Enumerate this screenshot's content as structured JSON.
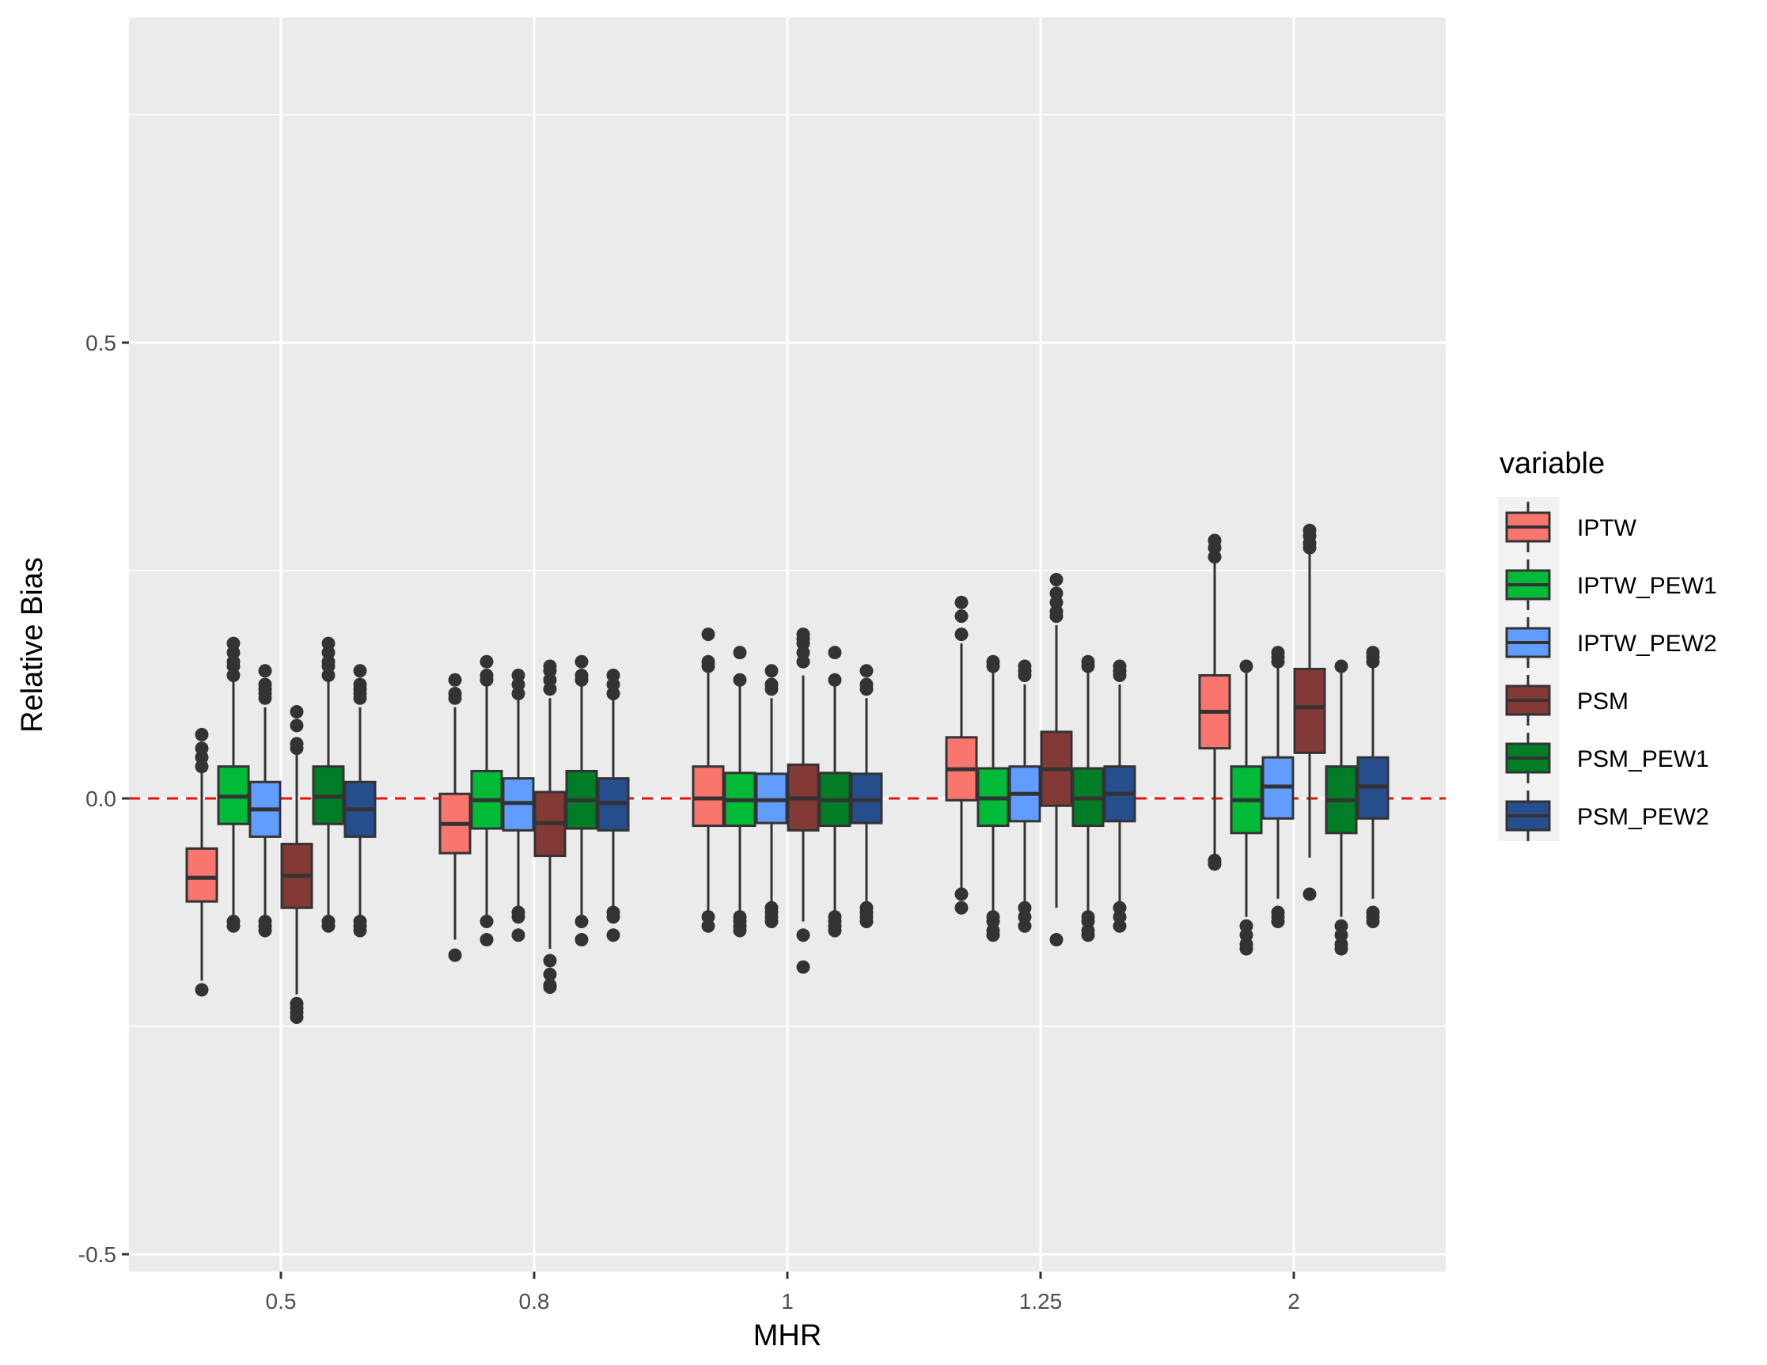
{
  "chart_data": {
    "type": "boxplot",
    "title": "",
    "xlabel": "MHR",
    "ylabel": "Relative Bias",
    "categories": [
      "0.5",
      "0.8",
      "1",
      "1.25",
      "2"
    ],
    "ylim": [
      -0.52,
      0.85
    ],
    "yticks": [
      -0.5,
      0.0,
      0.5
    ],
    "ytick_labels": [
      "-0.5",
      "0.0",
      "0.5"
    ],
    "reference_line": {
      "y": 0.0,
      "color": "#e3140f",
      "style": "dashed"
    },
    "grid": true,
    "legend": {
      "title": "variable",
      "position": "right"
    },
    "series": [
      {
        "name": "IPTW",
        "color": "#f8766d",
        "boxes": [
          {
            "q1": -0.113,
            "median": -0.087,
            "q3": -0.055,
            "whisker_low": -0.2,
            "whisker_high": 0.033,
            "outliers": [
              0.035,
              0.045,
              0.055,
              0.07,
              -0.21
            ]
          },
          {
            "q1": -0.06,
            "median": -0.028,
            "q3": 0.005,
            "whisker_low": -0.155,
            "whisker_high": 0.1,
            "outliers": [
              0.11,
              0.115,
              0.13,
              -0.172
            ]
          },
          {
            "q1": -0.03,
            "median": 0.0,
            "q3": 0.035,
            "whisker_low": -0.125,
            "whisker_high": 0.14,
            "outliers": [
              0.145,
              0.15,
              0.18,
              -0.13,
              -0.14
            ]
          },
          {
            "q1": -0.002,
            "median": 0.032,
            "q3": 0.067,
            "whisker_low": -0.1,
            "whisker_high": 0.17,
            "outliers": [
              0.18,
              0.2,
              0.215,
              -0.105,
              -0.12
            ]
          },
          {
            "q1": 0.055,
            "median": 0.095,
            "q3": 0.135,
            "whisker_low": -0.065,
            "whisker_high": 0.26,
            "outliers": [
              0.265,
              0.275,
              0.283,
              -0.068,
              -0.072
            ]
          }
        ]
      },
      {
        "name": "IPTW_PEW1",
        "color": "#00ba38",
        "boxes": [
          {
            "q1": -0.028,
            "median": 0.002,
            "q3": 0.035,
            "whisker_low": -0.13,
            "whisker_high": 0.13,
            "outliers": [
              0.135,
              0.145,
              0.15,
              0.16,
              0.17,
              -0.135,
              -0.14
            ]
          },
          {
            "q1": -0.033,
            "median": -0.002,
            "q3": 0.03,
            "whisker_low": -0.13,
            "whisker_high": 0.125,
            "outliers": [
              0.13,
              0.135,
              0.15,
              -0.135,
              -0.155
            ]
          },
          {
            "q1": -0.03,
            "median": -0.002,
            "q3": 0.028,
            "whisker_low": -0.125,
            "whisker_high": 0.125,
            "outliers": [
              0.13,
              0.16,
              -0.13,
              -0.135,
              -0.14,
              -0.145
            ]
          },
          {
            "q1": -0.03,
            "median": 0.0,
            "q3": 0.033,
            "whisker_low": -0.125,
            "whisker_high": 0.14,
            "outliers": [
              0.145,
              0.15,
              -0.13,
              -0.135,
              -0.145,
              -0.15
            ]
          },
          {
            "q1": -0.038,
            "median": -0.002,
            "q3": 0.035,
            "whisker_low": -0.13,
            "whisker_high": 0.14,
            "outliers": [
              0.145,
              -0.14,
              -0.15,
              -0.16,
              -0.165
            ]
          }
        ]
      },
      {
        "name": "IPTW_PEW2",
        "color": "#619cff",
        "boxes": [
          {
            "q1": -0.042,
            "median": -0.012,
            "q3": 0.018,
            "whisker_low": -0.13,
            "whisker_high": 0.1,
            "outliers": [
              0.11,
              0.115,
              0.12,
              0.125,
              0.14,
              -0.135,
              -0.14,
              -0.145
            ]
          },
          {
            "q1": -0.035,
            "median": -0.005,
            "q3": 0.022,
            "whisker_low": -0.12,
            "whisker_high": 0.11,
            "outliers": [
              0.115,
              0.125,
              0.135,
              -0.125,
              -0.13,
              -0.15
            ]
          },
          {
            "q1": -0.027,
            "median": -0.002,
            "q3": 0.027,
            "whisker_low": -0.12,
            "whisker_high": 0.11,
            "outliers": [
              0.12,
              0.125,
              0.14,
              -0.12,
              -0.125,
              -0.13,
              -0.135
            ]
          },
          {
            "q1": -0.025,
            "median": 0.005,
            "q3": 0.035,
            "whisker_low": -0.12,
            "whisker_high": 0.125,
            "outliers": [
              0.135,
              0.14,
              0.145,
              -0.12,
              -0.13,
              -0.14
            ]
          },
          {
            "q1": -0.022,
            "median": 0.013,
            "q3": 0.045,
            "whisker_low": -0.11,
            "whisker_high": 0.145,
            "outliers": [
              0.15,
              0.155,
              0.16,
              -0.125,
              -0.13,
              -0.135
            ]
          }
        ]
      },
      {
        "name": "PSM",
        "color": "#833a37",
        "boxes": [
          {
            "q1": -0.12,
            "median": -0.085,
            "q3": -0.05,
            "whisker_low": -0.215,
            "whisker_high": 0.05,
            "outliers": [
              0.055,
              0.06,
              0.08,
              0.095,
              -0.225,
              -0.23,
              -0.235,
              -0.24
            ]
          },
          {
            "q1": -0.063,
            "median": -0.027,
            "q3": 0.007,
            "whisker_low": -0.165,
            "whisker_high": 0.11,
            "outliers": [
              0.12,
              0.13,
              0.14,
              0.145,
              -0.178,
              -0.193,
              -0.205,
              -0.207
            ]
          },
          {
            "q1": -0.035,
            "median": 0.0,
            "q3": 0.037,
            "whisker_low": -0.135,
            "whisker_high": 0.135,
            "outliers": [
              0.15,
              0.16,
              0.17,
              0.175,
              0.18,
              -0.15,
              -0.185
            ]
          },
          {
            "q1": -0.008,
            "median": 0.032,
            "q3": 0.073,
            "whisker_low": -0.12,
            "whisker_high": 0.19,
            "outliers": [
              0.2,
              0.205,
              0.215,
              0.225,
              0.24,
              -0.155
            ]
          },
          {
            "q1": 0.05,
            "median": 0.1,
            "q3": 0.142,
            "whisker_low": -0.065,
            "whisker_high": 0.27,
            "outliers": [
              0.275,
              0.28,
              0.288,
              0.294,
              -0.105
            ]
          }
        ]
      },
      {
        "name": "PSM_PEW1",
        "color": "#007d25",
        "boxes": [
          {
            "q1": -0.028,
            "median": 0.002,
            "q3": 0.035,
            "whisker_low": -0.13,
            "whisker_high": 0.13,
            "outliers": [
              0.135,
              0.145,
              0.15,
              0.16,
              0.17,
              -0.135,
              -0.14
            ]
          },
          {
            "q1": -0.033,
            "median": -0.002,
            "q3": 0.03,
            "whisker_low": -0.13,
            "whisker_high": 0.125,
            "outliers": [
              0.13,
              0.135,
              0.15,
              -0.135,
              -0.155
            ]
          },
          {
            "q1": -0.03,
            "median": -0.002,
            "q3": 0.028,
            "whisker_low": -0.125,
            "whisker_high": 0.125,
            "outliers": [
              0.13,
              0.16,
              -0.13,
              -0.135,
              -0.14,
              -0.145
            ]
          },
          {
            "q1": -0.03,
            "median": 0.0,
            "q3": 0.033,
            "whisker_low": -0.125,
            "whisker_high": 0.14,
            "outliers": [
              0.145,
              0.15,
              -0.13,
              -0.135,
              -0.145,
              -0.15
            ]
          },
          {
            "q1": -0.038,
            "median": -0.002,
            "q3": 0.035,
            "whisker_low": -0.13,
            "whisker_high": 0.14,
            "outliers": [
              0.145,
              -0.14,
              -0.15,
              -0.16,
              -0.165
            ]
          }
        ]
      },
      {
        "name": "PSM_PEW2",
        "color": "#264d8c",
        "boxes": [
          {
            "q1": -0.042,
            "median": -0.012,
            "q3": 0.018,
            "whisker_low": -0.13,
            "whisker_high": 0.1,
            "outliers": [
              0.11,
              0.115,
              0.12,
              0.125,
              0.14,
              -0.135,
              -0.14,
              -0.145
            ]
          },
          {
            "q1": -0.035,
            "median": -0.005,
            "q3": 0.022,
            "whisker_low": -0.12,
            "whisker_high": 0.11,
            "outliers": [
              0.115,
              0.125,
              0.135,
              -0.125,
              -0.13,
              -0.15
            ]
          },
          {
            "q1": -0.027,
            "median": -0.002,
            "q3": 0.027,
            "whisker_low": -0.12,
            "whisker_high": 0.11,
            "outliers": [
              0.12,
              0.125,
              0.14,
              -0.12,
              -0.125,
              -0.13,
              -0.135
            ]
          },
          {
            "q1": -0.025,
            "median": 0.005,
            "q3": 0.035,
            "whisker_low": -0.12,
            "whisker_high": 0.125,
            "outliers": [
              0.135,
              0.14,
              0.145,
              -0.12,
              -0.13,
              -0.14
            ]
          },
          {
            "q1": -0.022,
            "median": 0.013,
            "q3": 0.045,
            "whisker_low": -0.11,
            "whisker_high": 0.145,
            "outliers": [
              0.15,
              0.155,
              0.16,
              -0.125,
              -0.13,
              -0.135
            ]
          }
        ]
      }
    ]
  }
}
